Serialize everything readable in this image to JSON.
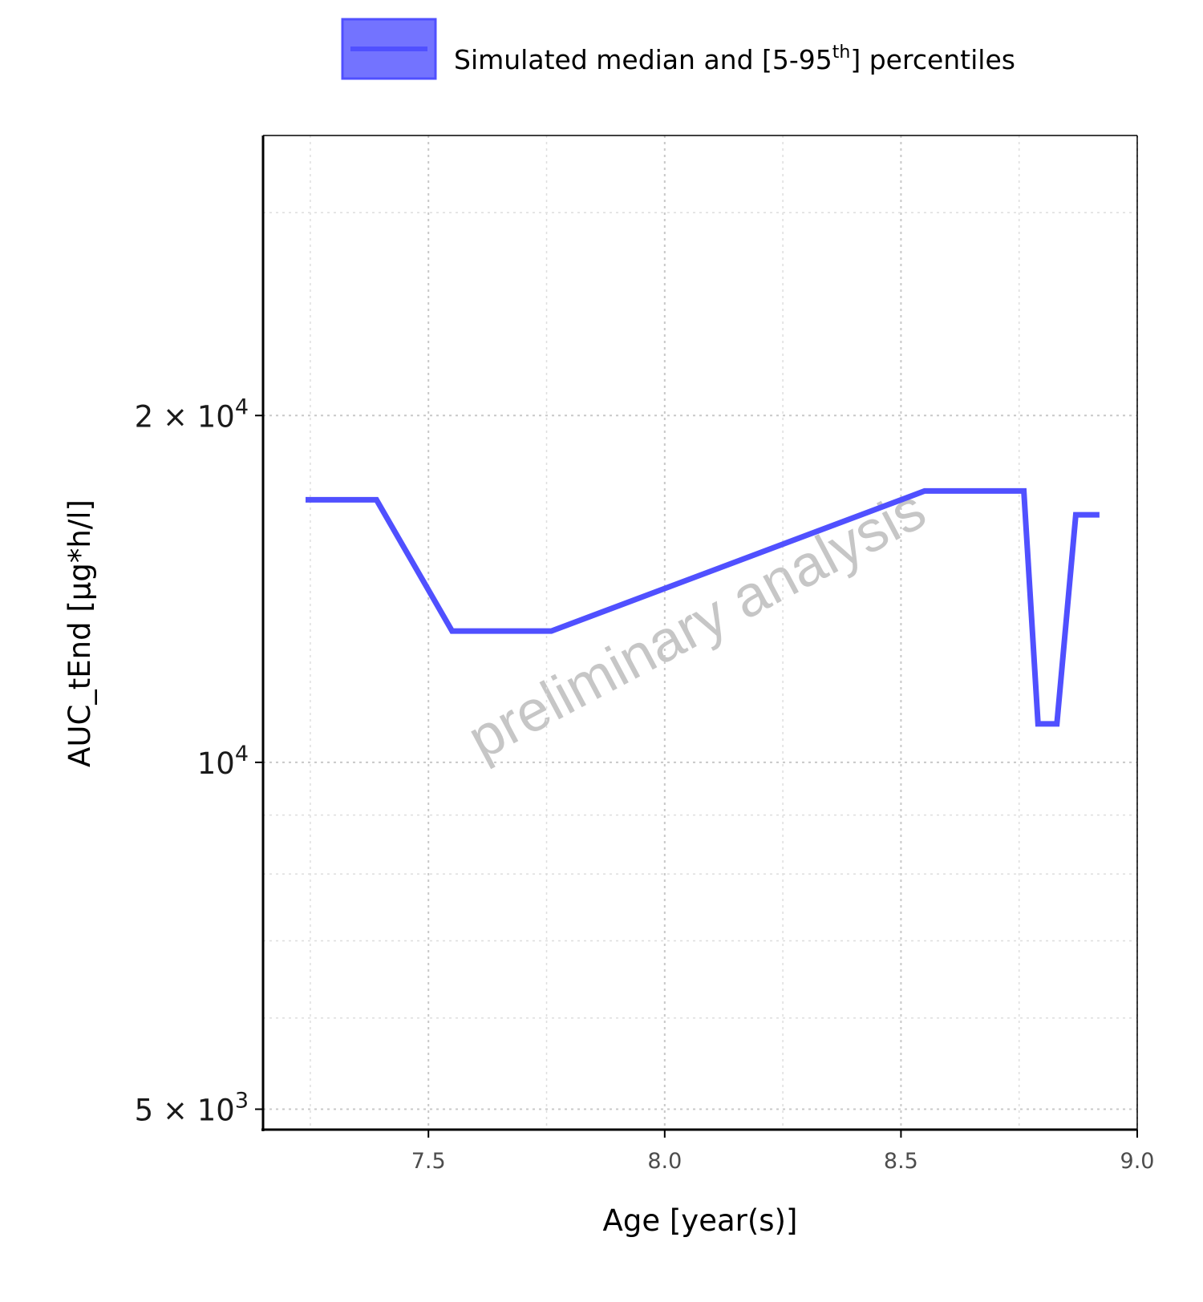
{
  "chart_data": {
    "type": "line",
    "xlabel": "Age [year(s)]",
    "ylabel": "AUC_tEnd [µg*h/l]",
    "xlim": [
      7.15,
      9.0
    ],
    "ylim": [
      4800,
      35000
    ],
    "y_scale": "log",
    "x_ticks": [
      7.5,
      8.0,
      8.5,
      9.0
    ],
    "x_tick_labels": [
      "7.5",
      "8.0",
      "8.5",
      "9.0"
    ],
    "y_ticks": [
      {
        "value": 5000,
        "mantissa": "5",
        "exponent": "3"
      },
      {
        "value": 10000,
        "mantissa": "",
        "exponent": "4"
      },
      {
        "value": 20000,
        "mantissa": "2",
        "exponent": "4"
      }
    ],
    "grid": true,
    "legend_position": "top",
    "watermark": "preliminary analysis",
    "series": [
      {
        "name": "Simulated median and [5-95th] percentiles",
        "name_parts": [
          "Simulated median and [5-95",
          "th",
          "] percentiles"
        ],
        "color": "#5050FF",
        "x": [
          7.24,
          7.39,
          7.55,
          7.76,
          8.55,
          8.76,
          8.79,
          8.83,
          8.87,
          8.92
        ],
        "y": [
          16900,
          16900,
          13000,
          13000,
          17200,
          17200,
          10800,
          10800,
          16400,
          16400
        ]
      }
    ]
  }
}
